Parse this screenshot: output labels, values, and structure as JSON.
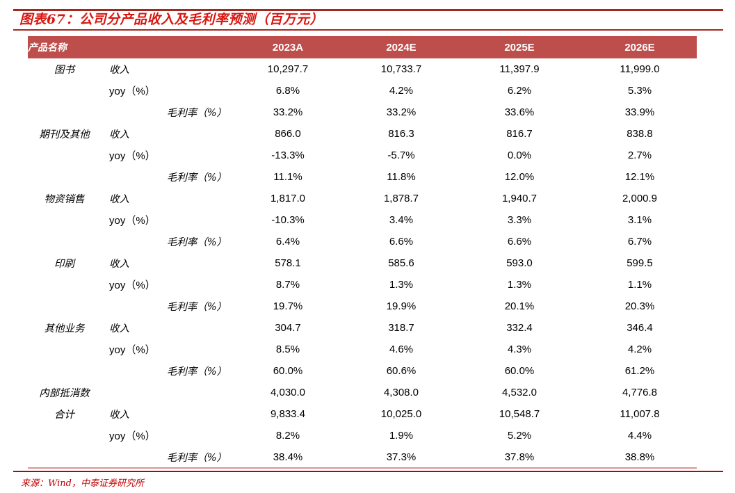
{
  "figure": {
    "title": "图表67：公司分产品收入及毛利率预测（百万元）",
    "source": "来源：Wind，中泰证券研究所"
  },
  "table": {
    "product_header": "产品名称",
    "year_headers": [
      "2023A",
      "2024E",
      "2025E",
      "2026E"
    ],
    "groups": [
      {
        "name": "图书",
        "rows": [
          {
            "metric": "收入",
            "values": [
              "10,297.7",
              "10,733.7",
              "11,397.9",
              "11,999.0"
            ]
          },
          {
            "metric": "yoy（%）",
            "values": [
              "6.8%",
              "4.2%",
              "6.2%",
              "5.3%"
            ]
          },
          {
            "metric": "毛利率（%）",
            "values": [
              "33.2%",
              "33.2%",
              "33.6%",
              "33.9%"
            ]
          }
        ]
      },
      {
        "name": "期刊及其他",
        "rows": [
          {
            "metric": "收入",
            "values": [
              "866.0",
              "816.3",
              "816.7",
              "838.8"
            ]
          },
          {
            "metric": "yoy（%）",
            "values": [
              "-13.3%",
              "-5.7%",
              "0.0%",
              "2.7%"
            ]
          },
          {
            "metric": "毛利率（%）",
            "values": [
              "11.1%",
              "11.8%",
              "12.0%",
              "12.1%"
            ]
          }
        ]
      },
      {
        "name": "物资销售",
        "rows": [
          {
            "metric": "收入",
            "values": [
              "1,817.0",
              "1,878.7",
              "1,940.7",
              "2,000.9"
            ]
          },
          {
            "metric": "yoy（%）",
            "values": [
              "-10.3%",
              "3.4%",
              "3.3%",
              "3.1%"
            ]
          },
          {
            "metric": "毛利率（%）",
            "values": [
              "6.4%",
              "6.6%",
              "6.6%",
              "6.7%"
            ]
          }
        ]
      },
      {
        "name": "印刷",
        "rows": [
          {
            "metric": "收入",
            "values": [
              "578.1",
              "585.6",
              "593.0",
              "599.5"
            ]
          },
          {
            "metric": "yoy（%）",
            "values": [
              "8.7%",
              "1.3%",
              "1.3%",
              "1.1%"
            ]
          },
          {
            "metric": "毛利率（%）",
            "values": [
              "19.7%",
              "19.9%",
              "20.1%",
              "20.3%"
            ]
          }
        ]
      },
      {
        "name": "其他业务",
        "rows": [
          {
            "metric": "收入",
            "values": [
              "304.7",
              "318.7",
              "332.4",
              "346.4"
            ]
          },
          {
            "metric": "yoy（%）",
            "values": [
              "8.5%",
              "4.6%",
              "4.3%",
              "4.2%"
            ]
          },
          {
            "metric": "毛利率（%）",
            "values": [
              "60.0%",
              "60.6%",
              "60.0%",
              "61.2%"
            ]
          }
        ]
      },
      {
        "name": "内部抵消数",
        "rows": [
          {
            "metric": "",
            "values": [
              "4,030.0",
              "4,308.0",
              "4,532.0",
              "4,776.8"
            ]
          }
        ]
      },
      {
        "name": "合计",
        "rows": [
          {
            "metric": "收入",
            "values": [
              "9,833.4",
              "10,025.0",
              "10,548.7",
              "11,007.8"
            ]
          },
          {
            "metric": "yoy（%）",
            "values": [
              "8.2%",
              "1.9%",
              "5.2%",
              "4.4%"
            ]
          },
          {
            "metric": "毛利率（%）",
            "values": [
              "38.4%",
              "37.3%",
              "37.8%",
              "38.8%"
            ]
          }
        ]
      }
    ]
  },
  "colors": {
    "header_bg": "#BE4E4B",
    "title_red": "#D9150F",
    "rule_red": "#A5281E",
    "source_rule_red": "#C00000",
    "source_text_red": "#C00000",
    "table_bottom_border": "#D99694",
    "header_text": "#FFFFFF",
    "body_text": "#000000"
  }
}
